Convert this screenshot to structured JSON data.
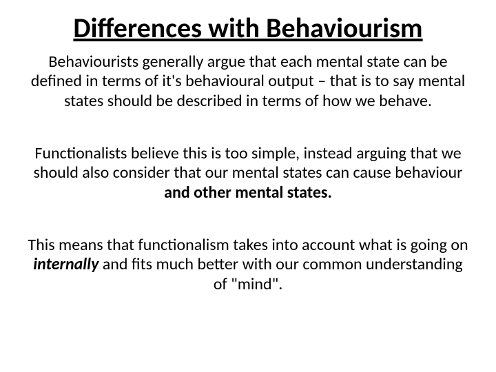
{
  "slide": {
    "title": "Differences with Behaviourism",
    "p1": "Behaviourists generally argue that each mental state can be defined in terms of it's behavioural output – that is to say mental states should be described in terms of how we behave.",
    "p2_a": "Functionalists believe this is too simple, instead arguing that we should also consider that our mental states can cause behaviour ",
    "p2_b": "and other mental states.",
    "p3_a": "This means that functionalism takes into account what is going on ",
    "p3_b": "internally",
    "p3_c": " and fits much better with our common understanding of \"mind\"."
  },
  "style": {
    "background_color": "#ffffff",
    "text_color": "#000000",
    "title_fontsize": 40,
    "body_fontsize": 24,
    "font_family": "Calibri"
  }
}
